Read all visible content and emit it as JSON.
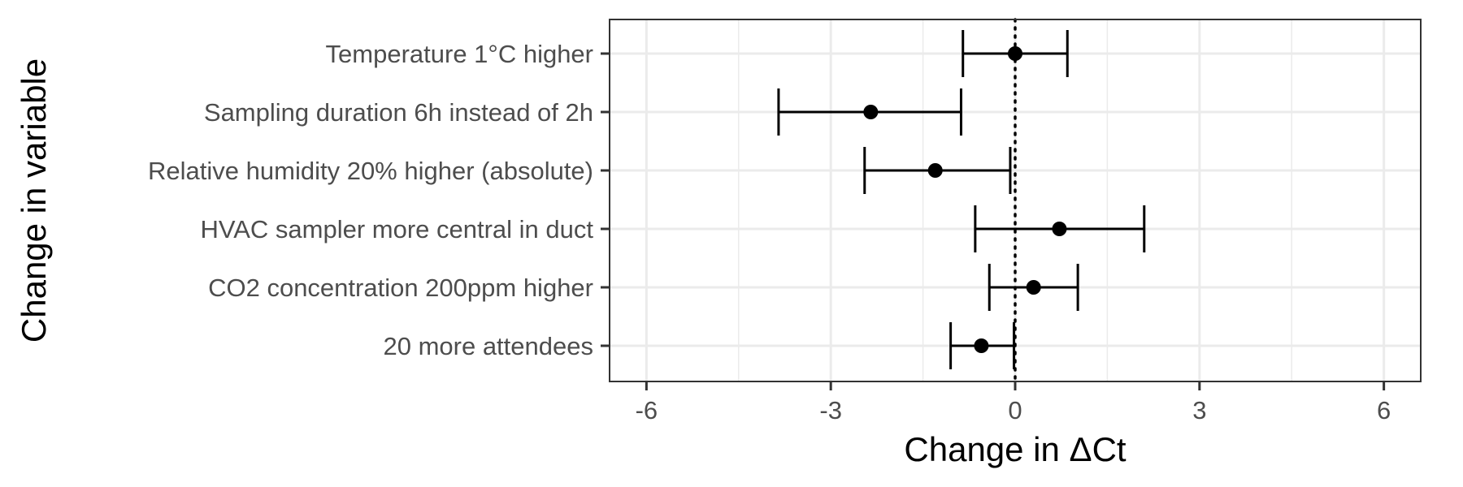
{
  "chart_data": {
    "type": "forest",
    "xlabel": "Change in ΔCt",
    "ylabel": "Change in variable",
    "xlim": [
      -6.6,
      6.6
    ],
    "x_ticks": [
      -6,
      -3,
      0,
      3,
      6
    ],
    "x_tick_labels": [
      "-6",
      "-3",
      "0",
      "3",
      "6"
    ],
    "reference_line": 0,
    "grid": true,
    "categories": [
      "Temperature 1°C higher",
      "Sampling duration 6h instead of 2h",
      "Relative humidity 20% higher (absolute)",
      "HVAC sampler more central in duct",
      "CO2 concentration 200ppm higher",
      "20 more attendees"
    ],
    "estimates": [
      0.0,
      -2.35,
      -1.3,
      0.72,
      0.3,
      -0.55
    ],
    "lower": [
      -0.85,
      -3.85,
      -2.45,
      -0.65,
      -0.42,
      -1.05
    ],
    "upper": [
      0.85,
      -0.88,
      -0.08,
      2.1,
      1.02,
      -0.02
    ],
    "colors": {
      "point": "#000000",
      "errorbar": "#000000",
      "grid": "#ebebeb",
      "panel_border": "#333333"
    }
  }
}
